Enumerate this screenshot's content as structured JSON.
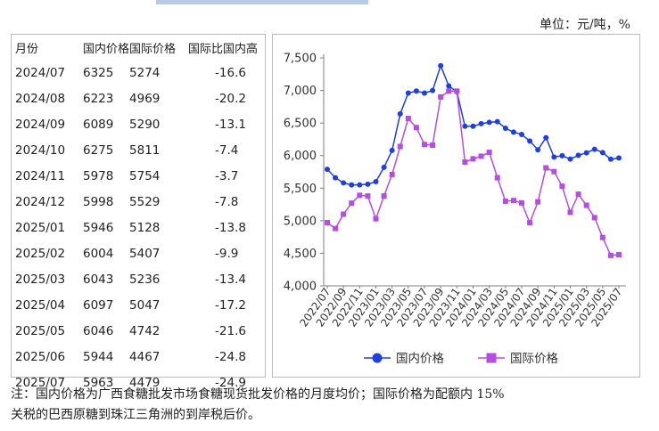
{
  "header": {
    "unit": "单位：元/吨，%"
  },
  "table": {
    "columns": [
      "月份",
      "国内价格",
      "国际价格",
      "国际比国内高"
    ],
    "rows": [
      [
        "2024/07",
        "6325",
        "5274",
        "-16.6"
      ],
      [
        "2024/08",
        "6223",
        "4969",
        "-20.2"
      ],
      [
        "2024/09",
        "6089",
        "5290",
        "-13.1"
      ],
      [
        "2024/10",
        "6275",
        "5811",
        "-7.4"
      ],
      [
        "2024/11",
        "5978",
        "5754",
        "-3.7"
      ],
      [
        "2024/12",
        "5998",
        "5529",
        "-7.8"
      ],
      [
        "2025/01",
        "5946",
        "5128",
        "-13.8"
      ],
      [
        "2025/02",
        "6004",
        "5407",
        "-9.9"
      ],
      [
        "2025/03",
        "6043",
        "5236",
        "-13.4"
      ],
      [
        "2025/04",
        "6097",
        "5047",
        "-17.2"
      ],
      [
        "2025/05",
        "6046",
        "4742",
        "-21.6"
      ],
      [
        "2025/06",
        "5944",
        "4467",
        "-24.8"
      ],
      [
        "2025/07",
        "5963",
        "4479",
        "-24.9"
      ]
    ]
  },
  "chart_data": {
    "type": "line",
    "ylim": [
      4000,
      7500
    ],
    "yticks": [
      4000,
      4500,
      5000,
      5500,
      6000,
      6500,
      7000,
      7500
    ],
    "ytick_labels": [
      "4,000",
      "4,500",
      "5,000",
      "5,500",
      "6,000",
      "6,500",
      "7,000",
      "7,500"
    ],
    "x": [
      "2022/07",
      "2022/08",
      "2022/09",
      "2022/10",
      "2022/11",
      "2022/12",
      "2023/01",
      "2023/02",
      "2023/03",
      "2023/04",
      "2023/05",
      "2023/06",
      "2023/07",
      "2023/08",
      "2023/09",
      "2023/10",
      "2023/11",
      "2023/12",
      "2024/01",
      "2024/02",
      "2024/03",
      "2024/04",
      "2024/05",
      "2024/06",
      "2024/07",
      "2024/08",
      "2024/09",
      "2024/10",
      "2024/11",
      "2024/12",
      "2025/01",
      "2025/02",
      "2025/03",
      "2025/04",
      "2025/05",
      "2025/06",
      "2025/07"
    ],
    "xtick_labels": [
      "2022/07",
      "2022/09",
      "2022/11",
      "2023/01",
      "2023/03",
      "2023/05",
      "2023/07",
      "2023/09",
      "2023/11",
      "2024/01",
      "2024/03",
      "2024/05",
      "2024/07",
      "2024/09",
      "2024/11",
      "2025/01",
      "2025/03",
      "2025/05",
      "2025/07"
    ],
    "grid": false,
    "legend_position": "bottom",
    "series": [
      {
        "name": "国内价格",
        "color": "#1f3fe0",
        "marker": "circle",
        "values": [
          5790,
          5660,
          5580,
          5550,
          5550,
          5560,
          5600,
          5820,
          6080,
          6640,
          6960,
          6990,
          6960,
          7000,
          7380,
          7070,
          6980,
          6450,
          6450,
          6490,
          6510,
          6520,
          6420,
          6360,
          6325,
          6223,
          6089,
          6275,
          5978,
          5998,
          5946,
          6004,
          6043,
          6097,
          6046,
          5944,
          5963
        ]
      },
      {
        "name": "国际价格",
        "color": "#b54ee0",
        "marker": "square",
        "values": [
          4970,
          4880,
          5100,
          5270,
          5390,
          5380,
          5030,
          5380,
          5710,
          6140,
          6570,
          6430,
          6170,
          6160,
          6900,
          6990,
          6990,
          5900,
          5950,
          5990,
          6050,
          5660,
          5300,
          5310,
          5274,
          4969,
          5290,
          5811,
          5754,
          5529,
          5128,
          5407,
          5236,
          5047,
          4742,
          4467,
          4479
        ]
      }
    ]
  },
  "note": {
    "line1": "注：国内价格为广西食糖批发市场食糖现货批发价格的月度均价；国际价格为配额内 15%",
    "line2": "关税的巴西原糖到珠江三角洲的到岸税后价。"
  }
}
